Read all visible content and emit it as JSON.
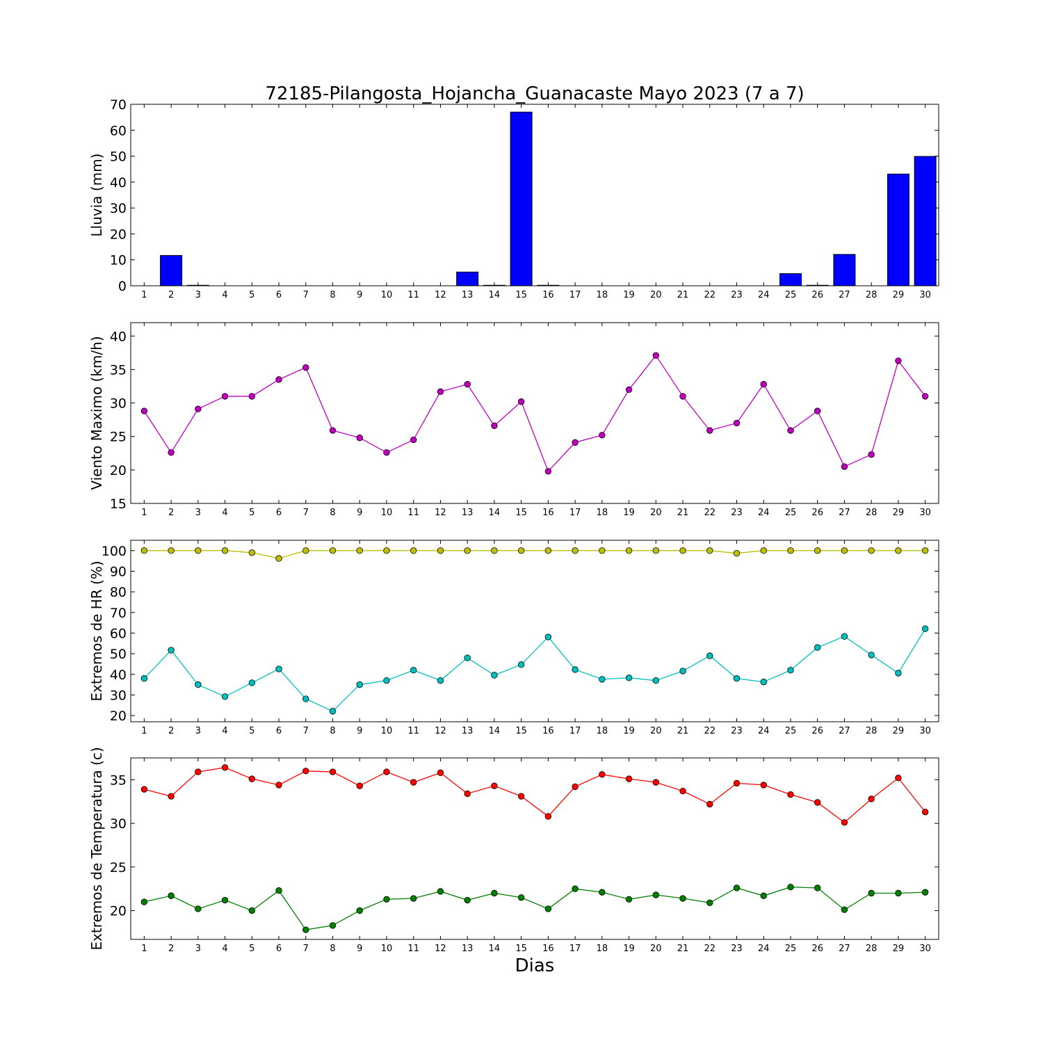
{
  "chart_data": [
    {
      "type": "bar",
      "title": "72185-Pilangosta_Hojancha_Guanacaste Mayo 2023  (7 a 7)",
      "ylabel": "Lluvia (mm)",
      "ylim": [
        0,
        70
      ],
      "yticks": [
        0,
        10,
        20,
        30,
        40,
        50,
        60,
        70
      ],
      "x": [
        1,
        2,
        3,
        4,
        5,
        6,
        7,
        8,
        9,
        10,
        11,
        12,
        13,
        14,
        15,
        16,
        17,
        18,
        19,
        20,
        21,
        22,
        23,
        24,
        25,
        26,
        27,
        28,
        29,
        30
      ],
      "series": [
        {
          "color": "#0000ff",
          "values": [
            0,
            11.7,
            0.2,
            0,
            0,
            0,
            0,
            0,
            0,
            0,
            0,
            0,
            5.3,
            0.2,
            67,
            0.2,
            0,
            0,
            0,
            0,
            0,
            0,
            0,
            0,
            4.7,
            0.2,
            12.1,
            0,
            43.1,
            49.9
          ]
        }
      ]
    },
    {
      "type": "line",
      "ylabel": "Viento Maximo (km/h)",
      "ylim": [
        15,
        42
      ],
      "yticks": [
        15,
        20,
        25,
        30,
        35,
        40
      ],
      "x": [
        1,
        2,
        3,
        4,
        5,
        6,
        7,
        8,
        9,
        10,
        11,
        12,
        13,
        14,
        15,
        16,
        17,
        18,
        19,
        20,
        21,
        22,
        23,
        24,
        25,
        26,
        27,
        28,
        29,
        30
      ],
      "series": [
        {
          "color": "#bf00bf",
          "values": [
            28.8,
            22.6,
            29.1,
            31.0,
            31.0,
            33.5,
            35.3,
            25.9,
            24.8,
            22.6,
            24.5,
            31.7,
            32.8,
            26.6,
            30.2,
            19.8,
            24.1,
            25.2,
            32.0,
            37.1,
            31.0,
            25.9,
            27.0,
            32.8,
            25.9,
            28.8,
            20.5,
            22.3,
            36.3,
            31.0
          ]
        }
      ]
    },
    {
      "type": "line",
      "ylabel": "Extremos de HR (%)",
      "ylim": [
        17,
        105
      ],
      "yticks": [
        20,
        30,
        40,
        50,
        60,
        70,
        80,
        90,
        100
      ],
      "x": [
        1,
        2,
        3,
        4,
        5,
        6,
        7,
        8,
        9,
        10,
        11,
        12,
        13,
        14,
        15,
        16,
        17,
        18,
        19,
        20,
        21,
        22,
        23,
        24,
        25,
        26,
        27,
        28,
        29,
        30
      ],
      "series": [
        {
          "color": "#bfbf00",
          "values": [
            100,
            100,
            100,
            100,
            99,
            96.2,
            100,
            100,
            100,
            100,
            100,
            100,
            100,
            100,
            100,
            100,
            100,
            100,
            100,
            100,
            100,
            100,
            98.7,
            100,
            100,
            100,
            100,
            100,
            100,
            100
          ]
        },
        {
          "color": "#00bfbf",
          "values": [
            38,
            51.7,
            35,
            29.2,
            35.9,
            42.6,
            28.1,
            22.1,
            35,
            37,
            42,
            37,
            48,
            39.6,
            44.7,
            58.1,
            42.3,
            37.6,
            38.3,
            37,
            41.6,
            49,
            38,
            36.3,
            42,
            53,
            58.4,
            49.4,
            40.6,
            62.1
          ]
        }
      ]
    },
    {
      "type": "line",
      "ylabel": "Extremos de Temperatura (c)",
      "xlabel": "Dias",
      "ylim": [
        16.7,
        37.5
      ],
      "yticks": [
        20,
        25,
        30,
        35
      ],
      "x": [
        1,
        2,
        3,
        4,
        5,
        6,
        7,
        8,
        9,
        10,
        11,
        12,
        13,
        14,
        15,
        16,
        17,
        18,
        19,
        20,
        21,
        22,
        23,
        24,
        25,
        26,
        27,
        28,
        29,
        30
      ],
      "series": [
        {
          "color": "#ff0000",
          "values": [
            33.9,
            33.1,
            35.9,
            36.4,
            35.1,
            34.4,
            36.0,
            35.9,
            34.3,
            35.9,
            34.7,
            35.8,
            33.4,
            34.3,
            33.1,
            30.8,
            34.2,
            35.6,
            35.1,
            34.7,
            33.7,
            32.2,
            34.6,
            34.4,
            33.3,
            32.4,
            30.1,
            32.8,
            35.2,
            31.3
          ]
        },
        {
          "color": "#008000",
          "values": [
            21.0,
            21.7,
            20.2,
            21.2,
            20.0,
            22.3,
            17.8,
            18.3,
            20.0,
            21.3,
            21.4,
            22.2,
            21.2,
            22.0,
            21.5,
            20.2,
            22.5,
            22.1,
            21.3,
            21.8,
            21.4,
            20.9,
            22.6,
            21.7,
            22.7,
            22.6,
            20.1,
            22.0,
            22.0,
            22.1
          ]
        }
      ]
    }
  ]
}
